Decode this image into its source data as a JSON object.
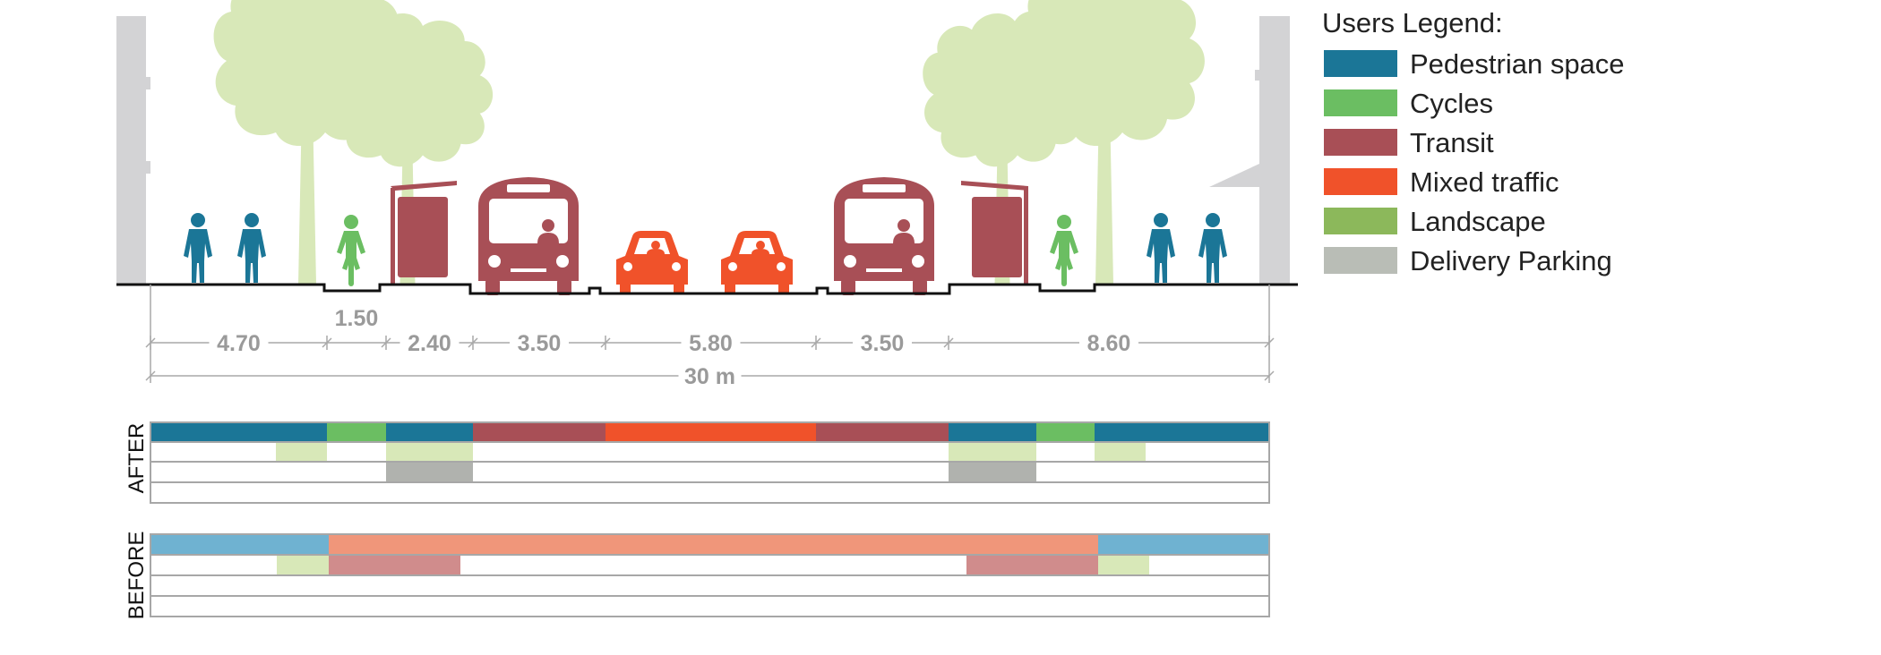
{
  "legend": {
    "title": "Users Legend:",
    "items": [
      {
        "label": "Pedestrian space",
        "color": "#1b7697"
      },
      {
        "label": "Cycles",
        "color": "#6bbe62"
      },
      {
        "label": "Transit",
        "color": "#a84f56"
      },
      {
        "label": "Mixed traffic",
        "color": "#f0522a"
      },
      {
        "label": "Landscape",
        "color": "#8cb85b"
      },
      {
        "label": "Delivery Parking",
        "color": "#b9bdb6"
      }
    ]
  },
  "dimensions": {
    "segments": [
      "4.70",
      "1.50",
      "2.40",
      "3.50",
      "5.80",
      "3.50",
      "8.60"
    ],
    "total": "30 m"
  },
  "phases": {
    "after_label": "AFTER",
    "before_label": "BEFORE"
  },
  "colors": {
    "tree": "#d8e8b8",
    "wall": "#d3d3d5",
    "after_landscape": "#d8e8b8",
    "after_parking": "#b0b2ae",
    "before_pedestrian": "#6fb2d1",
    "before_traffic": "#f0967a",
    "before_transit": "#d08c8c",
    "before_landscape": "#d8e8b8"
  }
}
